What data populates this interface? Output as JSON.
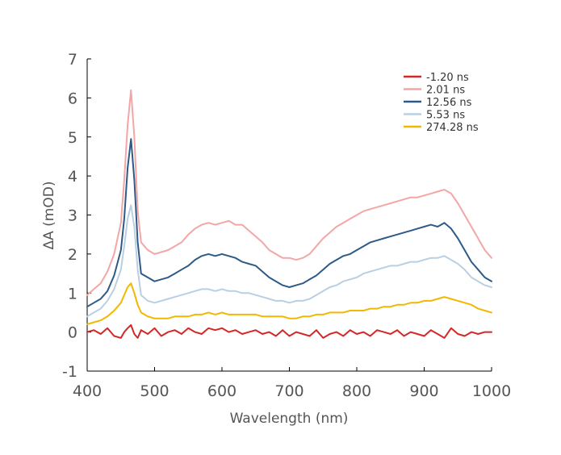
{
  "chart_data": {
    "type": "line",
    "xlabel": "Wavelength (nm)",
    "ylabel": "ΔA (mOD)",
    "xlim": [
      400,
      1000
    ],
    "ylim": [
      -1,
      7
    ],
    "xticks": [
      400,
      500,
      600,
      700,
      800,
      900,
      1000
    ],
    "yticks": [
      -1,
      0,
      1,
      2,
      3,
      4,
      5,
      6,
      7
    ],
    "grid": false,
    "legend_position": "top-right",
    "series": [
      {
        "name": "-1.20 ns",
        "color": "#d62728",
        "x": [
          400,
          410,
          420,
          430,
          440,
          450,
          455,
          460,
          465,
          470,
          475,
          480,
          490,
          500,
          510,
          520,
          530,
          540,
          550,
          560,
          570,
          580,
          590,
          600,
          610,
          620,
          630,
          640,
          650,
          660,
          670,
          680,
          690,
          700,
          710,
          720,
          730,
          740,
          750,
          760,
          770,
          780,
          790,
          800,
          810,
          820,
          830,
          840,
          850,
          860,
          870,
          880,
          890,
          900,
          910,
          920,
          930,
          940,
          950,
          960,
          970,
          980,
          990,
          1000
        ],
        "values": [
          0.0,
          0.05,
          -0.05,
          0.1,
          -0.1,
          -0.15,
          0.0,
          0.1,
          0.18,
          -0.05,
          -0.15,
          0.05,
          -0.05,
          0.1,
          -0.1,
          0.0,
          0.05,
          -0.05,
          0.1,
          0.0,
          -0.05,
          0.1,
          0.05,
          0.1,
          0.0,
          0.05,
          -0.05,
          0.0,
          0.05,
          -0.05,
          0.0,
          -0.1,
          0.05,
          -0.1,
          0.0,
          -0.05,
          -0.1,
          0.05,
          -0.15,
          -0.05,
          0.0,
          -0.1,
          0.05,
          -0.05,
          0.0,
          -0.1,
          0.05,
          0.0,
          -0.05,
          0.05,
          -0.1,
          0.0,
          -0.05,
          -0.1,
          0.05,
          -0.05,
          -0.15,
          0.1,
          -0.05,
          -0.1,
          0.0,
          -0.05,
          0.0,
          0.0
        ]
      },
      {
        "name": "2.01 ns",
        "color": "#f4a6a6",
        "x": [
          400,
          410,
          420,
          430,
          440,
          450,
          455,
          460,
          465,
          470,
          475,
          480,
          490,
          500,
          510,
          520,
          530,
          540,
          550,
          560,
          570,
          580,
          590,
          600,
          610,
          620,
          630,
          640,
          650,
          660,
          670,
          680,
          690,
          700,
          710,
          720,
          730,
          740,
          750,
          760,
          770,
          780,
          790,
          800,
          810,
          820,
          830,
          840,
          850,
          860,
          870,
          880,
          890,
          900,
          910,
          920,
          930,
          940,
          950,
          960,
          970,
          980,
          990,
          1000
        ],
        "values": [
          0.95,
          1.1,
          1.25,
          1.55,
          2.0,
          2.8,
          3.9,
          5.3,
          6.2,
          5.0,
          3.1,
          2.3,
          2.1,
          2.0,
          2.05,
          2.1,
          2.2,
          2.3,
          2.5,
          2.65,
          2.75,
          2.8,
          2.75,
          2.8,
          2.85,
          2.75,
          2.75,
          2.6,
          2.45,
          2.3,
          2.1,
          2.0,
          1.9,
          1.9,
          1.85,
          1.9,
          2.0,
          2.2,
          2.4,
          2.55,
          2.7,
          2.8,
          2.9,
          3.0,
          3.1,
          3.15,
          3.2,
          3.25,
          3.3,
          3.35,
          3.4,
          3.45,
          3.45,
          3.5,
          3.55,
          3.6,
          3.65,
          3.55,
          3.3,
          3.0,
          2.7,
          2.4,
          2.1,
          1.9
        ]
      },
      {
        "name": "12.56 ns",
        "color": "#2e5a87",
        "x": [
          400,
          410,
          420,
          430,
          440,
          450,
          455,
          460,
          465,
          470,
          475,
          480,
          490,
          500,
          510,
          520,
          530,
          540,
          550,
          560,
          570,
          580,
          590,
          600,
          610,
          620,
          630,
          640,
          650,
          660,
          670,
          680,
          690,
          700,
          710,
          720,
          730,
          740,
          750,
          760,
          770,
          780,
          790,
          800,
          810,
          820,
          830,
          840,
          850,
          860,
          870,
          880,
          890,
          900,
          910,
          920,
          930,
          940,
          950,
          960,
          970,
          980,
          990,
          1000
        ],
        "values": [
          0.65,
          0.75,
          0.85,
          1.05,
          1.45,
          2.1,
          2.9,
          4.2,
          4.95,
          3.9,
          2.3,
          1.5,
          1.4,
          1.3,
          1.35,
          1.4,
          1.5,
          1.6,
          1.7,
          1.85,
          1.95,
          2.0,
          1.95,
          2.0,
          1.95,
          1.9,
          1.8,
          1.75,
          1.7,
          1.55,
          1.4,
          1.3,
          1.2,
          1.15,
          1.2,
          1.25,
          1.35,
          1.45,
          1.6,
          1.75,
          1.85,
          1.95,
          2.0,
          2.1,
          2.2,
          2.3,
          2.35,
          2.4,
          2.45,
          2.5,
          2.55,
          2.6,
          2.65,
          2.7,
          2.75,
          2.7,
          2.8,
          2.65,
          2.4,
          2.1,
          1.8,
          1.6,
          1.4,
          1.3
        ]
      },
      {
        "name": "5.53 ns",
        "color": "#b9cfe3",
        "x": [
          400,
          410,
          420,
          430,
          440,
          450,
          455,
          460,
          465,
          470,
          475,
          480,
          490,
          500,
          510,
          520,
          530,
          540,
          550,
          560,
          570,
          580,
          590,
          600,
          610,
          620,
          630,
          640,
          650,
          660,
          670,
          680,
          690,
          700,
          710,
          720,
          730,
          740,
          750,
          760,
          770,
          780,
          790,
          800,
          810,
          820,
          830,
          840,
          850,
          860,
          870,
          880,
          890,
          900,
          910,
          920,
          930,
          940,
          950,
          960,
          970,
          980,
          990,
          1000
        ],
        "values": [
          0.4,
          0.5,
          0.6,
          0.8,
          1.1,
          1.6,
          2.2,
          2.9,
          3.25,
          2.7,
          1.6,
          0.95,
          0.8,
          0.75,
          0.8,
          0.85,
          0.9,
          0.95,
          1.0,
          1.05,
          1.1,
          1.1,
          1.05,
          1.1,
          1.05,
          1.05,
          1.0,
          1.0,
          0.95,
          0.9,
          0.85,
          0.8,
          0.8,
          0.75,
          0.8,
          0.8,
          0.85,
          0.95,
          1.05,
          1.15,
          1.2,
          1.3,
          1.35,
          1.4,
          1.5,
          1.55,
          1.6,
          1.65,
          1.7,
          1.7,
          1.75,
          1.8,
          1.8,
          1.85,
          1.9,
          1.9,
          1.95,
          1.85,
          1.75,
          1.6,
          1.4,
          1.3,
          1.2,
          1.15
        ]
      },
      {
        "name": "274.28 ns",
        "color": "#f0b800",
        "x": [
          400,
          410,
          420,
          430,
          440,
          450,
          455,
          460,
          465,
          470,
          475,
          480,
          490,
          500,
          510,
          520,
          530,
          540,
          550,
          560,
          570,
          580,
          590,
          600,
          610,
          620,
          630,
          640,
          650,
          660,
          670,
          680,
          690,
          700,
          710,
          720,
          730,
          740,
          750,
          760,
          770,
          780,
          790,
          800,
          810,
          820,
          830,
          840,
          850,
          860,
          870,
          880,
          890,
          900,
          910,
          920,
          930,
          940,
          950,
          960,
          970,
          980,
          990,
          1000
        ],
        "values": [
          0.2,
          0.25,
          0.3,
          0.4,
          0.55,
          0.75,
          0.95,
          1.15,
          1.25,
          1.0,
          0.7,
          0.5,
          0.4,
          0.35,
          0.35,
          0.35,
          0.4,
          0.4,
          0.4,
          0.45,
          0.45,
          0.5,
          0.45,
          0.5,
          0.45,
          0.45,
          0.45,
          0.45,
          0.45,
          0.4,
          0.4,
          0.4,
          0.4,
          0.35,
          0.35,
          0.4,
          0.4,
          0.45,
          0.45,
          0.5,
          0.5,
          0.5,
          0.55,
          0.55,
          0.55,
          0.6,
          0.6,
          0.65,
          0.65,
          0.7,
          0.7,
          0.75,
          0.75,
          0.8,
          0.8,
          0.85,
          0.9,
          0.85,
          0.8,
          0.75,
          0.7,
          0.6,
          0.55,
          0.5
        ]
      }
    ]
  }
}
